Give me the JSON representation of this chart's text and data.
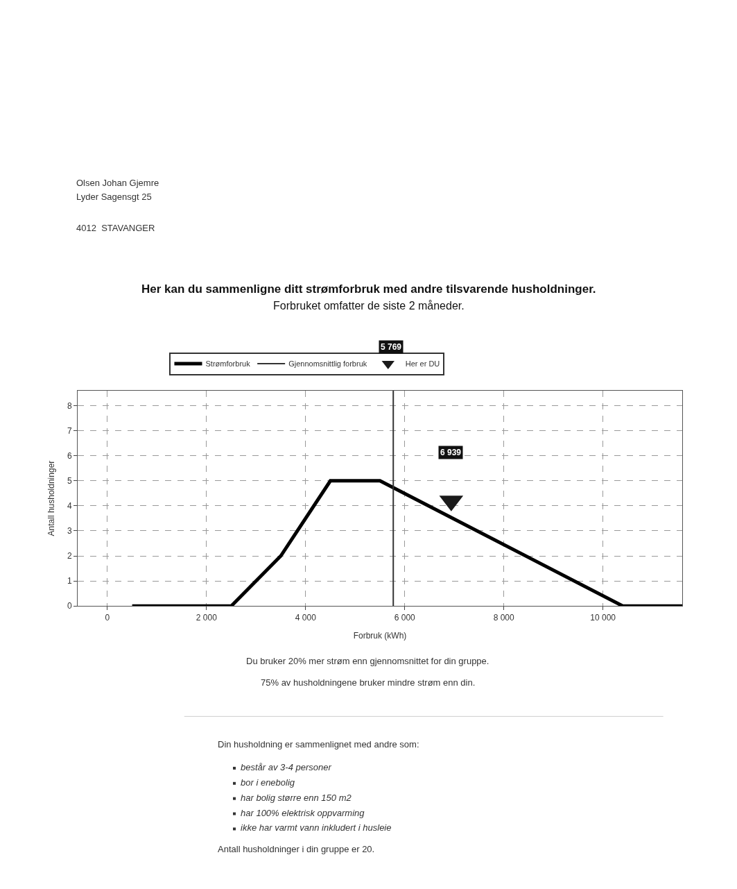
{
  "chart_data": {
    "type": "line",
    "title": "Her kan du sammenligne ditt strømforbruk med andre tilsvarende husholdninger.",
    "subtitle": "Forbruket omfatter de siste 2 måneder.",
    "xlabel": "Forbruk (kWh)",
    "ylabel": "Antall husholdninger",
    "xlim": [
      -600,
      11600
    ],
    "xticks": [
      0,
      {
        "value": 2000,
        "label": "2 000"
      },
      {
        "value": 4000,
        "label": "4 000"
      },
      {
        "value": 6000,
        "label": "6 000"
      },
      {
        "value": 8000,
        "label": "8 000"
      },
      {
        "value": 10000,
        "label": "10 000"
      }
    ],
    "ylim": [
      0,
      8.6
    ],
    "yticks": [
      0,
      1,
      2,
      3,
      4,
      5,
      6,
      7,
      8
    ],
    "series": [
      {
        "name": "Strømforbruk",
        "color": "#000000",
        "x": [
          500,
          2500,
          3500,
          4500,
          5500,
          10400,
          11600
        ],
        "values": [
          0,
          0,
          2,
          5,
          5,
          0,
          0
        ]
      },
      {
        "name": "Gjennomsnittlig forbruk",
        "type": "line",
        "color": "#333333",
        "x": [
          5769,
          5769
        ],
        "values": [
          0,
          8.6
        ]
      },
      {
        "name": "Her er DU",
        "type": "scatter",
        "marker": "triangle",
        "color": "#1a1a1a",
        "x": [
          6939
        ],
        "values": [
          4.2
        ]
      }
    ],
    "annotations": [
      "5 769",
      "6 939",
      "Olsen Johan Gjemre",
      "Lyder Sagensgt 25",
      "4012  STAVANGER",
      "Du bruker 20% mer strøm enn gjennomsnittet for din gruppe.",
      "75% av husholdningene bruker mindre strøm enn din.",
      "Din husholdning er sammenlignet med andre som:",
      "består av 3-4 personer",
      "bor i enebolig",
      "har bolig større enn 150 m2",
      "har 100% elektrisk oppvarming",
      "ikke har varmt vann inkludert i husleie",
      "Antall husholdninger i din gruppe er 20."
    ],
    "grid": true,
    "legend": "top"
  }
}
